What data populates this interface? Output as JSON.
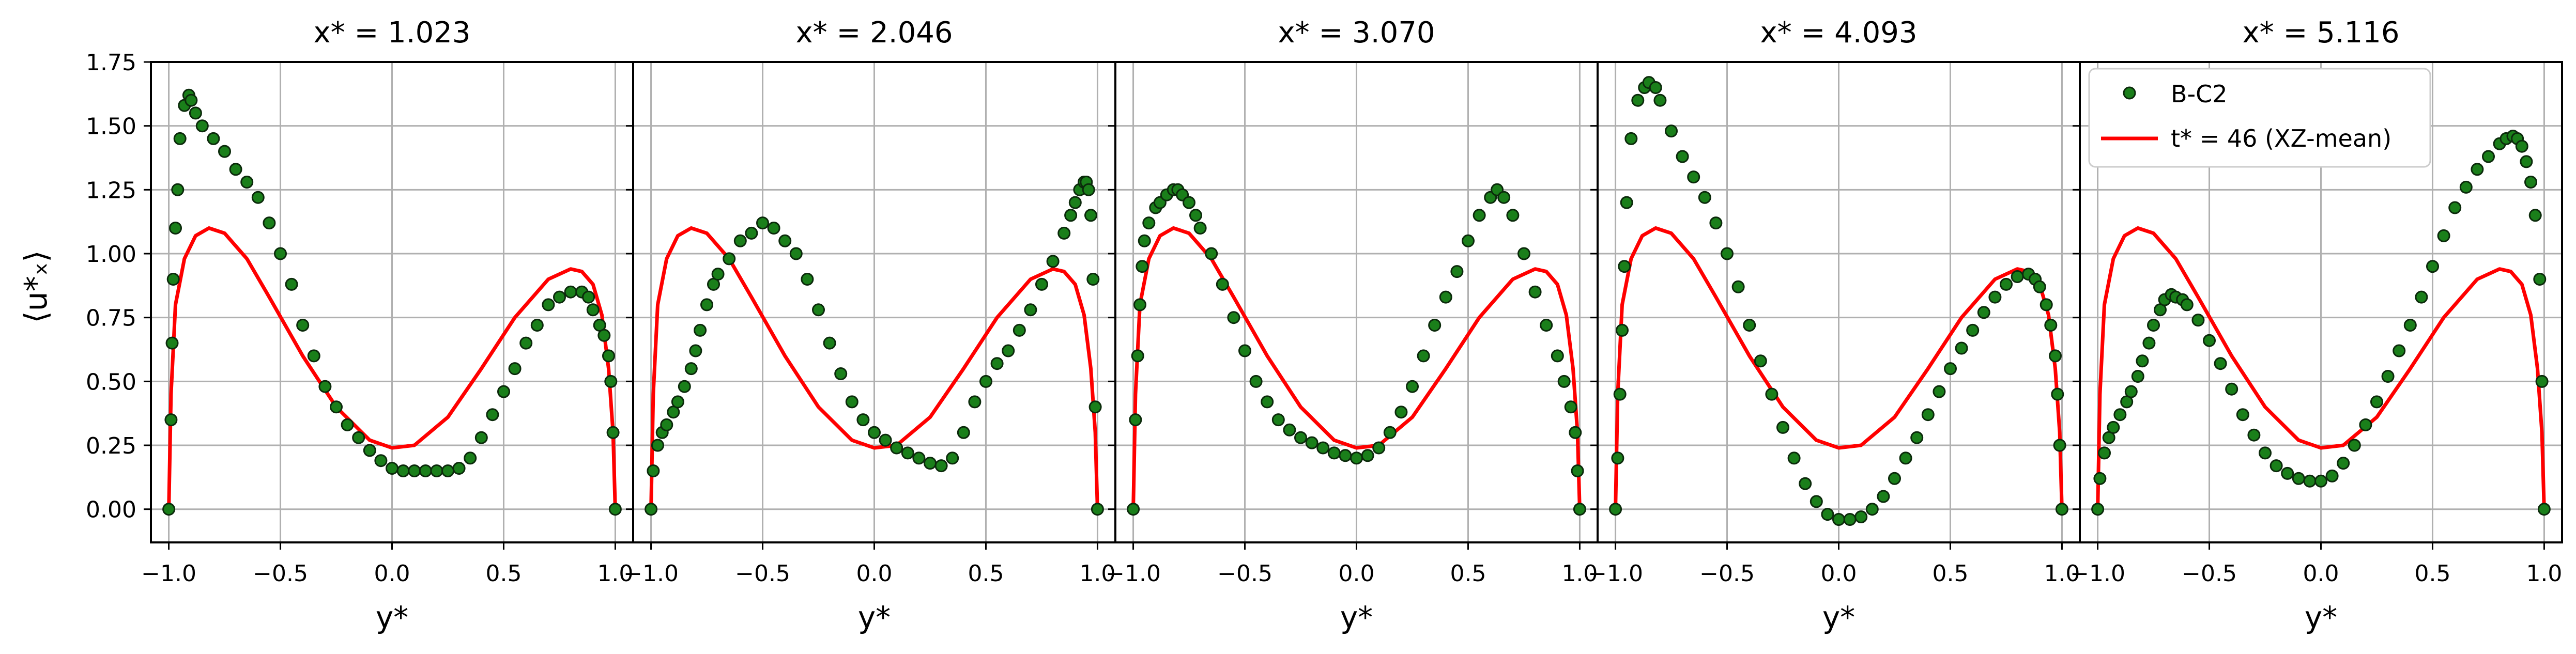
{
  "chart_data": {
    "type": "line",
    "ylabel": "⟨u*ₓ⟩",
    "xlabel": "y*",
    "ylim": [
      -0.13,
      1.75
    ],
    "xlim": [
      -1.08,
      1.08
    ],
    "xticks": [
      -1.0,
      -0.5,
      0.0,
      0.5,
      1.0
    ],
    "xtick_labels": [
      "−1.0",
      "−0.5",
      "0.0",
      "0.5",
      "1.0"
    ],
    "yticks": [
      0.0,
      0.25,
      0.5,
      0.75,
      1.0,
      1.25,
      1.5,
      1.75
    ],
    "ytick_labels": [
      "0.00",
      "0.25",
      "0.50",
      "0.75",
      "1.00",
      "1.25",
      "1.50",
      "1.75"
    ],
    "grid": true,
    "legend": {
      "placement": "top-right (last panel)",
      "entries": [
        "B-C2",
        "t* = 46 (XZ-mean)"
      ]
    },
    "colors": {
      "marker_fill": "#1a7f1a",
      "marker_edge": "#0b2a0b",
      "reference_line": "#ff0000",
      "grid": "#b0b0b0",
      "axes": "#000000"
    },
    "reference_series": {
      "name": "t* = 46 (XZ-mean)",
      "x": [
        -1.0,
        -0.99,
        -0.97,
        -0.93,
        -0.88,
        -0.82,
        -0.75,
        -0.65,
        -0.55,
        -0.4,
        -0.25,
        -0.1,
        0.0,
        0.1,
        0.25,
        0.4,
        0.55,
        0.7,
        0.8,
        0.85,
        0.9,
        0.94,
        0.97,
        0.99,
        1.0
      ],
      "y": [
        0.0,
        0.45,
        0.8,
        0.98,
        1.07,
        1.1,
        1.08,
        0.98,
        0.83,
        0.6,
        0.4,
        0.27,
        0.24,
        0.25,
        0.36,
        0.55,
        0.75,
        0.9,
        0.94,
        0.93,
        0.88,
        0.76,
        0.55,
        0.3,
        0.0
      ]
    },
    "panels": [
      {
        "title": "x* = 1.023",
        "series": [
          {
            "name": "B-C2",
            "x": [
              -1.0,
              -0.99,
              -0.985,
              -0.98,
              -0.97,
              -0.96,
              -0.95,
              -0.93,
              -0.91,
              -0.9,
              -0.88,
              -0.85,
              -0.8,
              -0.75,
              -0.7,
              -0.65,
              -0.6,
              -0.55,
              -0.5,
              -0.45,
              -0.4,
              -0.35,
              -0.3,
              -0.25,
              -0.2,
              -0.15,
              -0.1,
              -0.05,
              0.0,
              0.05,
              0.1,
              0.15,
              0.2,
              0.25,
              0.3,
              0.35,
              0.4,
              0.45,
              0.5,
              0.55,
              0.6,
              0.65,
              0.7,
              0.75,
              0.8,
              0.85,
              0.88,
              0.9,
              0.93,
              0.95,
              0.97,
              0.98,
              0.99,
              1.0
            ],
            "y": [
              0.0,
              0.35,
              0.65,
              0.9,
              1.1,
              1.25,
              1.45,
              1.58,
              1.62,
              1.6,
              1.55,
              1.5,
              1.45,
              1.4,
              1.33,
              1.28,
              1.22,
              1.12,
              1.0,
              0.88,
              0.72,
              0.6,
              0.48,
              0.4,
              0.33,
              0.28,
              0.23,
              0.19,
              0.16,
              0.15,
              0.15,
              0.15,
              0.15,
              0.15,
              0.16,
              0.2,
              0.28,
              0.37,
              0.46,
              0.55,
              0.65,
              0.72,
              0.8,
              0.83,
              0.85,
              0.85,
              0.83,
              0.78,
              0.72,
              0.68,
              0.6,
              0.5,
              0.3,
              0.0
            ]
          }
        ]
      },
      {
        "title": "x* = 2.046",
        "series": [
          {
            "name": "B-C2",
            "x": [
              -1.0,
              -0.99,
              -0.97,
              -0.95,
              -0.93,
              -0.9,
              -0.88,
              -0.85,
              -0.82,
              -0.8,
              -0.78,
              -0.75,
              -0.72,
              -0.7,
              -0.65,
              -0.6,
              -0.55,
              -0.5,
              -0.45,
              -0.4,
              -0.35,
              -0.3,
              -0.25,
              -0.2,
              -0.15,
              -0.1,
              -0.05,
              0.0,
              0.05,
              0.1,
              0.15,
              0.2,
              0.25,
              0.3,
              0.35,
              0.4,
              0.45,
              0.5,
              0.55,
              0.6,
              0.65,
              0.7,
              0.75,
              0.8,
              0.85,
              0.88,
              0.9,
              0.92,
              0.94,
              0.95,
              0.96,
              0.97,
              0.98,
              0.99,
              1.0
            ],
            "y": [
              0.0,
              0.15,
              0.25,
              0.3,
              0.33,
              0.38,
              0.42,
              0.48,
              0.55,
              0.62,
              0.7,
              0.8,
              0.88,
              0.92,
              0.98,
              1.05,
              1.08,
              1.12,
              1.1,
              1.05,
              1.0,
              0.9,
              0.78,
              0.65,
              0.53,
              0.42,
              0.35,
              0.3,
              0.27,
              0.24,
              0.22,
              0.2,
              0.18,
              0.17,
              0.2,
              0.3,
              0.42,
              0.5,
              0.57,
              0.62,
              0.7,
              0.78,
              0.88,
              0.97,
              1.08,
              1.15,
              1.2,
              1.25,
              1.28,
              1.28,
              1.25,
              1.15,
              0.9,
              0.4,
              0.0
            ]
          }
        ]
      },
      {
        "title": "x* = 3.070",
        "series": [
          {
            "name": "B-C2",
            "x": [
              -1.0,
              -0.99,
              -0.98,
              -0.97,
              -0.96,
              -0.95,
              -0.93,
              -0.9,
              -0.88,
              -0.85,
              -0.82,
              -0.8,
              -0.78,
              -0.75,
              -0.72,
              -0.7,
              -0.65,
              -0.6,
              -0.55,
              -0.5,
              -0.45,
              -0.4,
              -0.35,
              -0.3,
              -0.25,
              -0.2,
              -0.15,
              -0.1,
              -0.05,
              0.0,
              0.05,
              0.1,
              0.15,
              0.2,
              0.25,
              0.3,
              0.35,
              0.4,
              0.45,
              0.5,
              0.55,
              0.6,
              0.63,
              0.66,
              0.7,
              0.75,
              0.8,
              0.85,
              0.9,
              0.93,
              0.96,
              0.98,
              0.99,
              1.0
            ],
            "y": [
              0.0,
              0.35,
              0.6,
              0.8,
              0.95,
              1.05,
              1.12,
              1.18,
              1.2,
              1.23,
              1.25,
              1.25,
              1.23,
              1.2,
              1.15,
              1.1,
              1.0,
              0.88,
              0.75,
              0.62,
              0.5,
              0.42,
              0.35,
              0.31,
              0.28,
              0.26,
              0.24,
              0.22,
              0.21,
              0.2,
              0.21,
              0.24,
              0.3,
              0.38,
              0.48,
              0.6,
              0.72,
              0.83,
              0.93,
              1.05,
              1.15,
              1.22,
              1.25,
              1.22,
              1.15,
              1.0,
              0.85,
              0.72,
              0.6,
              0.5,
              0.4,
              0.3,
              0.15,
              0.0
            ]
          }
        ]
      },
      {
        "title": "x* = 4.093",
        "series": [
          {
            "name": "B-C2",
            "x": [
              -1.0,
              -0.99,
              -0.98,
              -0.97,
              -0.96,
              -0.95,
              -0.93,
              -0.9,
              -0.87,
              -0.85,
              -0.82,
              -0.8,
              -0.75,
              -0.7,
              -0.65,
              -0.6,
              -0.55,
              -0.5,
              -0.45,
              -0.4,
              -0.35,
              -0.3,
              -0.25,
              -0.2,
              -0.15,
              -0.1,
              -0.05,
              0.0,
              0.05,
              0.1,
              0.15,
              0.2,
              0.25,
              0.3,
              0.35,
              0.4,
              0.45,
              0.5,
              0.55,
              0.6,
              0.65,
              0.7,
              0.75,
              0.8,
              0.85,
              0.88,
              0.9,
              0.93,
              0.95,
              0.97,
              0.98,
              0.99,
              1.0
            ],
            "y": [
              0.0,
              0.2,
              0.45,
              0.7,
              0.95,
              1.2,
              1.45,
              1.6,
              1.65,
              1.67,
              1.65,
              1.6,
              1.48,
              1.38,
              1.3,
              1.22,
              1.12,
              1.0,
              0.87,
              0.72,
              0.58,
              0.45,
              0.32,
              0.2,
              0.1,
              0.03,
              -0.02,
              -0.04,
              -0.04,
              -0.03,
              0.0,
              0.05,
              0.12,
              0.2,
              0.28,
              0.37,
              0.46,
              0.55,
              0.63,
              0.7,
              0.77,
              0.83,
              0.88,
              0.91,
              0.92,
              0.9,
              0.87,
              0.8,
              0.72,
              0.6,
              0.45,
              0.25,
              0.0
            ]
          }
        ]
      },
      {
        "title": "x* = 5.116",
        "series": [
          {
            "name": "B-C2",
            "x": [
              -1.0,
              -0.99,
              -0.97,
              -0.95,
              -0.93,
              -0.9,
              -0.87,
              -0.85,
              -0.82,
              -0.8,
              -0.77,
              -0.75,
              -0.72,
              -0.7,
              -0.67,
              -0.65,
              -0.62,
              -0.6,
              -0.55,
              -0.5,
              -0.45,
              -0.4,
              -0.35,
              -0.3,
              -0.25,
              -0.2,
              -0.15,
              -0.1,
              -0.05,
              0.0,
              0.05,
              0.1,
              0.15,
              0.2,
              0.25,
              0.3,
              0.35,
              0.4,
              0.45,
              0.5,
              0.55,
              0.6,
              0.65,
              0.7,
              0.75,
              0.8,
              0.83,
              0.86,
              0.88,
              0.9,
              0.92,
              0.94,
              0.96,
              0.98,
              0.99,
              1.0
            ],
            "y": [
              0.0,
              0.12,
              0.22,
              0.28,
              0.32,
              0.37,
              0.42,
              0.46,
              0.52,
              0.58,
              0.65,
              0.72,
              0.78,
              0.82,
              0.84,
              0.83,
              0.82,
              0.8,
              0.74,
              0.66,
              0.57,
              0.47,
              0.37,
              0.29,
              0.22,
              0.17,
              0.14,
              0.12,
              0.11,
              0.11,
              0.13,
              0.18,
              0.25,
              0.33,
              0.42,
              0.52,
              0.62,
              0.72,
              0.83,
              0.95,
              1.07,
              1.18,
              1.26,
              1.33,
              1.38,
              1.43,
              1.45,
              1.46,
              1.45,
              1.42,
              1.36,
              1.28,
              1.15,
              0.9,
              0.5,
              0.0
            ]
          }
        ]
      }
    ]
  }
}
